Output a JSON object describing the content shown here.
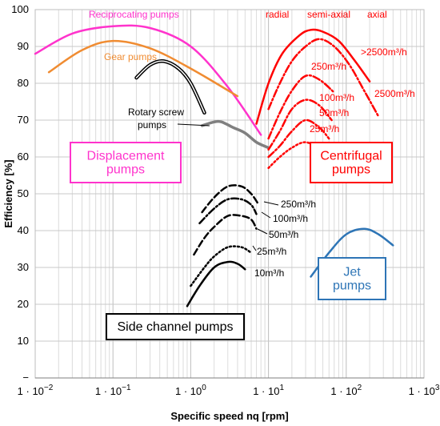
{
  "chart_data": {
    "type": "line",
    "xscale": "log",
    "xlim": [
      0.01,
      1000
    ],
    "ylim": [
      0,
      100
    ],
    "xlabel": "Specific speed nq [rpm]",
    "ylabel": "Efficiency [%]",
    "xticks": [
      {
        "x": 0.01,
        "label": "1 · 10",
        "exp": "−2"
      },
      {
        "x": 0.1,
        "label": "1 · 10",
        "exp": "−1"
      },
      {
        "x": 1,
        "label": "1 · 10",
        "exp": "0"
      },
      {
        "x": 10,
        "label": "1 · 10",
        "exp": "1"
      },
      {
        "x": 100,
        "label": "1 · 10",
        "exp": "2"
      },
      {
        "x": 1000,
        "label": "1 · 10",
        "exp": "3"
      }
    ],
    "yticks": [
      "−",
      "10",
      "20",
      "30",
      "40",
      "50",
      "60",
      "70",
      "80",
      "90",
      "100"
    ],
    "grid": true,
    "series": [
      {
        "name": "Reciprocating pumps",
        "color": "#ff33cc",
        "style": "solid",
        "points": [
          [
            0.01,
            88
          ],
          [
            0.03,
            93.5
          ],
          [
            0.1,
            95.5
          ],
          [
            0.3,
            95
          ],
          [
            1,
            90
          ],
          [
            3,
            79
          ],
          [
            8,
            66
          ]
        ]
      },
      {
        "name": "Gear pumps",
        "color": "#f08c32",
        "style": "solid",
        "points": [
          [
            0.015,
            83
          ],
          [
            0.04,
            89
          ],
          [
            0.1,
            91.5
          ],
          [
            0.3,
            89.5
          ],
          [
            1,
            84
          ],
          [
            4,
            76.5
          ]
        ]
      },
      {
        "name": "Rotary screw pumps",
        "color": "#000000",
        "style": "double",
        "points": [
          [
            0.2,
            81.5
          ],
          [
            0.3,
            85
          ],
          [
            0.45,
            86
          ],
          [
            0.7,
            84
          ],
          [
            1,
            80
          ],
          [
            1.5,
            72
          ]
        ]
      },
      {
        "name": "",
        "color": "#808080",
        "style": "solid",
        "points": [
          [
            1.4,
            68.5
          ],
          [
            2,
            69.5
          ],
          [
            2.5,
            69.5
          ],
          [
            3.5,
            68
          ],
          [
            5,
            66.5
          ],
          [
            7,
            64
          ],
          [
            10,
            62.5
          ]
        ]
      },
      {
        "name": "radial",
        "color": "#ff0000",
        "style": "solid",
        "points": [
          [
            7,
            69
          ],
          [
            10,
            80
          ],
          [
            15,
            88
          ],
          [
            25,
            93
          ],
          [
            35,
            94.5
          ],
          [
            50,
            94
          ],
          [
            80,
            91.5
          ],
          [
            130,
            86
          ],
          [
            200,
            80.5
          ]
        ]
      },
      {
        "name": "semi-axial",
        "color": "#ff0000",
        "style": "dashdot",
        "points": [
          [
            10,
            73
          ],
          [
            14,
            80
          ],
          [
            20,
            86
          ],
          [
            30,
            90
          ],
          [
            45,
            92
          ],
          [
            70,
            90
          ],
          [
            110,
            85
          ],
          [
            170,
            78
          ],
          [
            260,
            71
          ]
        ]
      },
      {
        "name": "250m³/h",
        "color": "#ff0000",
        "style": "dashdot",
        "points": [
          [
            10,
            65
          ],
          [
            14,
            72
          ],
          [
            20,
            78
          ],
          [
            30,
            82
          ],
          [
            45,
            81
          ],
          [
            70,
            77.5
          ]
        ]
      },
      {
        "name": "100m³/h",
        "color": "#ff0000",
        "style": "dashdot",
        "points": [
          [
            10,
            62
          ],
          [
            14,
            67
          ],
          [
            20,
            73
          ],
          [
            30,
            75.5
          ],
          [
            45,
            74
          ],
          [
            65,
            70
          ]
        ]
      },
      {
        "name": "50m³/h",
        "color": "#ff0000",
        "style": "dashdot",
        "points": [
          [
            10,
            60
          ],
          [
            14,
            63
          ],
          [
            20,
            67
          ],
          [
            30,
            70
          ],
          [
            45,
            68
          ],
          [
            60,
            65
          ]
        ]
      },
      {
        "name": "25m³/h",
        "color": "#ff0000",
        "style": "dotted",
        "points": [
          [
            10,
            57
          ],
          [
            14,
            60
          ],
          [
            20,
            62.5
          ],
          [
            30,
            64
          ],
          [
            45,
            62
          ],
          [
            55,
            59
          ]
        ]
      },
      {
        "name": "250m³/h",
        "color": "#000000",
        "style": "dash",
        "points": [
          [
            1.4,
            45
          ],
          [
            2,
            49
          ],
          [
            3,
            52
          ],
          [
            4.5,
            52
          ],
          [
            6,
            50
          ],
          [
            7.5,
            47
          ]
        ]
      },
      {
        "name": "100m³/h",
        "color": "#000000",
        "style": "dashdot",
        "points": [
          [
            1.3,
            42
          ],
          [
            2,
            46
          ],
          [
            3,
            48.5
          ],
          [
            4.5,
            48.5
          ],
          [
            6,
            47
          ],
          [
            7,
            44.5
          ]
        ]
      },
      {
        "name": "50m³/h",
        "color": "#000000",
        "style": "dash",
        "points": [
          [
            1.1,
            33.5
          ],
          [
            1.5,
            38
          ],
          [
            2,
            41
          ],
          [
            3,
            44
          ],
          [
            4.5,
            44
          ],
          [
            6,
            43
          ],
          [
            7,
            40.5
          ]
        ]
      },
      {
        "name": "25m³/h",
        "color": "#000000",
        "style": "dotted",
        "points": [
          [
            1,
            25
          ],
          [
            1.5,
            30
          ],
          [
            2,
            33
          ],
          [
            3,
            35.5
          ],
          [
            4.5,
            35.5
          ],
          [
            6,
            34
          ]
        ]
      },
      {
        "name": "10m³/h",
        "color": "#000000",
        "style": "solid",
        "points": [
          [
            0.9,
            19.5
          ],
          [
            1.3,
            25
          ],
          [
            2,
            30
          ],
          [
            3,
            31.5
          ],
          [
            4,
            31
          ],
          [
            5,
            29.5
          ]
        ]
      },
      {
        "name": "Jet pumps",
        "color": "#2e75b6",
        "style": "solid",
        "points": [
          [
            35,
            27.5
          ],
          [
            60,
            34
          ],
          [
            100,
            39
          ],
          [
            170,
            40.5
          ],
          [
            260,
            39
          ],
          [
            400,
            36
          ]
        ]
      }
    ],
    "annotations": [
      {
        "text": "Reciprocating pumps",
        "color": "#ff33cc"
      },
      {
        "text": "Gear pumps",
        "color": "#f08c32"
      },
      {
        "text": "Rotary screw",
        "color": "#000000"
      },
      {
        "text": "pumps",
        "color": "#000000"
      },
      {
        "text": "radial",
        "color": "#ff0000"
      },
      {
        "text": "semi-axial",
        "color": "#ff0000"
      },
      {
        "text": "axial",
        "color": "#ff0000"
      },
      {
        "text": ">2500m³/h",
        "color": "#ff0000"
      },
      {
        "text": "2500m³/h",
        "color": "#ff0000"
      },
      {
        "text": "250m³/h",
        "color": "#ff0000"
      },
      {
        "text": "100m³/h",
        "color": "#ff0000"
      },
      {
        "text": "50m³/h",
        "color": "#ff0000"
      },
      {
        "text": "25m³/h",
        "color": "#ff0000"
      },
      {
        "text": "250m³/h",
        "color": "#000000"
      },
      {
        "text": "100m³/h",
        "color": "#000000"
      },
      {
        "text": "50m³/h",
        "color": "#000000"
      },
      {
        "text": "25m³/h",
        "color": "#000000"
      },
      {
        "text": "10m³/h",
        "color": "#000000"
      }
    ],
    "boxes": [
      {
        "lines": [
          "Displacement",
          "pumps"
        ],
        "color": "#ff33cc"
      },
      {
        "lines": [
          "Centrifugal",
          "pumps"
        ],
        "color": "#ff0000"
      },
      {
        "lines": [
          "Jet",
          "pumps"
        ],
        "color": "#2e75b6"
      },
      {
        "lines": [
          "Side channel pumps"
        ],
        "color": "#000000"
      }
    ]
  }
}
